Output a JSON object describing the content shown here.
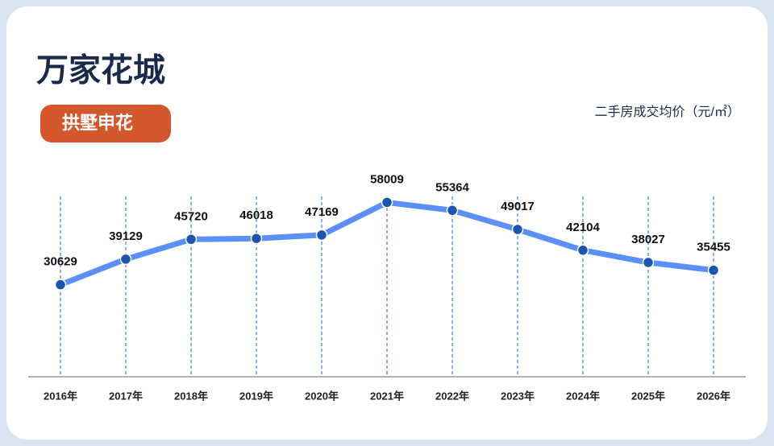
{
  "chart_data": {
    "type": "line",
    "title": "万家花城",
    "tag": "拱墅申花",
    "subtitle": "二手房成交均价（元/㎡）",
    "categories": [
      "2016年",
      "2017年",
      "2018年",
      "2019年",
      "2020年",
      "2021年",
      "2022年",
      "2023年",
      "2024年",
      "2025年",
      "2026年"
    ],
    "values": [
      30629,
      39129,
      45720,
      46018,
      47169,
      58009,
      55364,
      49017,
      42104,
      38027,
      35455
    ],
    "color": "#5b8ff9",
    "marker_color": "#1a56b0",
    "ylim": [
      0,
      60000
    ],
    "grid": true
  }
}
